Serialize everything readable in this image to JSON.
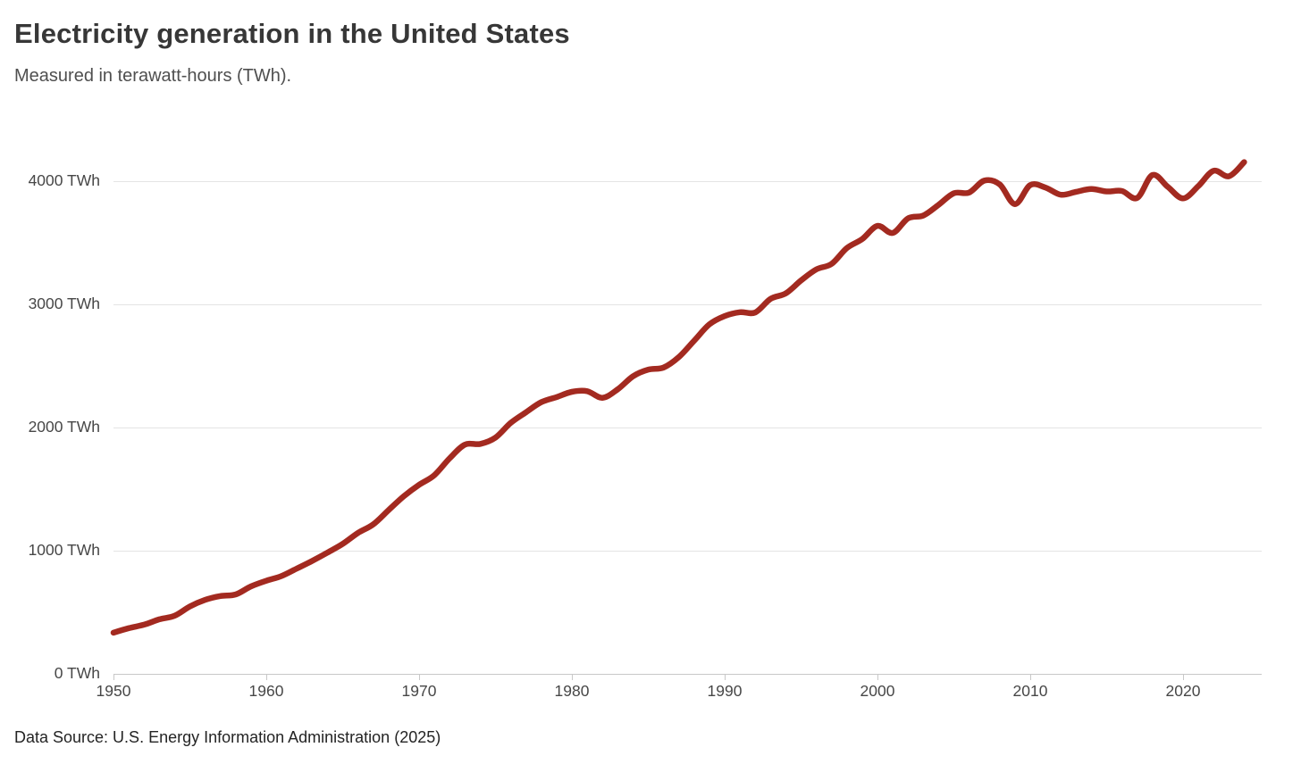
{
  "header": {
    "title": "Electricity generation in the United States",
    "subtitle": "Measured in terawatt-hours (TWh)."
  },
  "footer": {
    "source": "Data Source: U.S. Energy Information Administration (2025)"
  },
  "chart_data": {
    "type": "line",
    "title": "Electricity generation in the United States",
    "subtitle": "Measured in terawatt-hours (TWh).",
    "unit": "TWh",
    "series_name": "Electricity generation",
    "line_color": "#A32A20",
    "grid": true,
    "legend_position": "none",
    "xlabel": "",
    "ylabel": "TWh",
    "xlim": [
      1950,
      2024
    ],
    "ylim": [
      0,
      4300
    ],
    "yticks": [
      0,
      1000,
      2000,
      3000,
      4000
    ],
    "ytick_labels": [
      "0 TWh",
      "1000 TWh",
      "2000 TWh",
      "3000 TWh",
      "4000 TWh"
    ],
    "xticks": [
      1950,
      1960,
      1970,
      1980,
      1990,
      2000,
      2010,
      2020
    ],
    "xtick_labels": [
      "1950",
      "1960",
      "1970",
      "1980",
      "1990",
      "2000",
      "2010",
      "2020"
    ],
    "x": [
      1950,
      1951,
      1952,
      1953,
      1954,
      1955,
      1956,
      1957,
      1958,
      1959,
      1960,
      1961,
      1962,
      1963,
      1964,
      1965,
      1966,
      1967,
      1968,
      1969,
      1970,
      1971,
      1972,
      1973,
      1974,
      1975,
      1976,
      1977,
      1978,
      1979,
      1980,
      1981,
      1982,
      1983,
      1984,
      1985,
      1986,
      1987,
      1988,
      1989,
      1990,
      1991,
      1992,
      1993,
      1994,
      1995,
      1996,
      1997,
      1998,
      1999,
      2000,
      2001,
      2002,
      2003,
      2004,
      2005,
      2006,
      2007,
      2008,
      2009,
      2010,
      2011,
      2012,
      2013,
      2014,
      2015,
      2016,
      2017,
      2018,
      2019,
      2020,
      2021,
      2022,
      2023,
      2024
    ],
    "values": [
      334,
      371,
      399,
      443,
      472,
      547,
      601,
      632,
      645,
      710,
      756,
      794,
      855,
      917,
      984,
      1055,
      1144,
      1214,
      1329,
      1442,
      1535,
      1613,
      1750,
      1861,
      1867,
      1918,
      2038,
      2124,
      2206,
      2247,
      2290,
      2295,
      2241,
      2310,
      2416,
      2470,
      2487,
      2572,
      2704,
      2838,
      2905,
      2936,
      2934,
      3044,
      3089,
      3194,
      3284,
      3329,
      3457,
      3530,
      3637,
      3580,
      3698,
      3721,
      3808,
      3902,
      3908,
      4005,
      3974,
      3814,
      3968,
      3948,
      3890,
      3914,
      3936,
      3917,
      3920,
      3864,
      4050,
      3954,
      3860,
      3960,
      4085,
      4040,
      4155
    ]
  }
}
